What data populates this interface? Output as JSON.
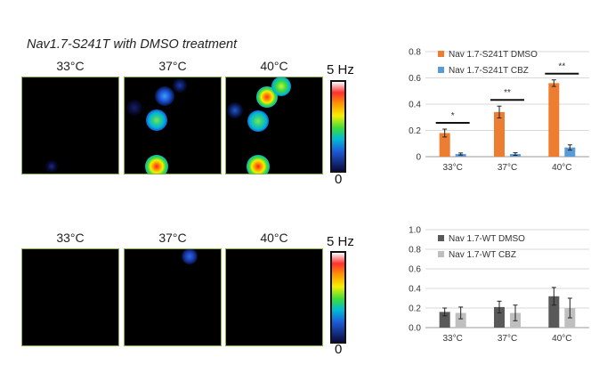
{
  "title": "Nav1.7-S241T with DMSO treatment",
  "row1": {
    "temps": [
      "33°C",
      "37°C",
      "40°C"
    ],
    "cbar_max": "5 Hz",
    "cbar_min": "0"
  },
  "row2": {
    "temps": [
      "33°C",
      "37°C",
      "40°C"
    ],
    "cbar_max": "5 Hz",
    "cbar_min": "0"
  },
  "chart_data": [
    {
      "type": "bar",
      "categories": [
        "33°C",
        "37°C",
        "40°C"
      ],
      "series": [
        {
          "name": "Nav 1.7-S241T DMSO",
          "values": [
            0.18,
            0.34,
            0.56
          ],
          "errors": [
            0.03,
            0.045,
            0.025
          ],
          "color": "#ed7d31"
        },
        {
          "name": "Nav 1.7-S241T CBZ",
          "values": [
            0.02,
            0.02,
            0.07
          ],
          "errors": [
            0.008,
            0.01,
            0.02
          ],
          "color": "#5b9bd5"
        }
      ],
      "ylim": [
        0,
        0.8
      ],
      "yticks": [
        "0",
        "0.2",
        "0.4",
        "0.6",
        "0.8"
      ],
      "annotations": [
        "*",
        "**",
        "**"
      ],
      "legend": "top-left",
      "grid": true
    },
    {
      "type": "bar",
      "categories": [
        "33°C",
        "37°C",
        "40°C"
      ],
      "series": [
        {
          "name": "Nav 1.7-WT DMSO",
          "values": [
            0.16,
            0.21,
            0.32
          ],
          "errors": [
            0.04,
            0.06,
            0.09
          ],
          "color": "#595959"
        },
        {
          "name": "Nav 1.7-WT CBZ",
          "values": [
            0.15,
            0.15,
            0.2
          ],
          "errors": [
            0.06,
            0.08,
            0.1
          ],
          "color": "#bfbfbf"
        }
      ],
      "ylim": [
        0,
        1.0
      ],
      "yticks": [
        "0.0",
        "0.2",
        "0.4",
        "0.6",
        "0.8",
        "1.0"
      ],
      "legend": "top-left",
      "grid": true
    }
  ]
}
